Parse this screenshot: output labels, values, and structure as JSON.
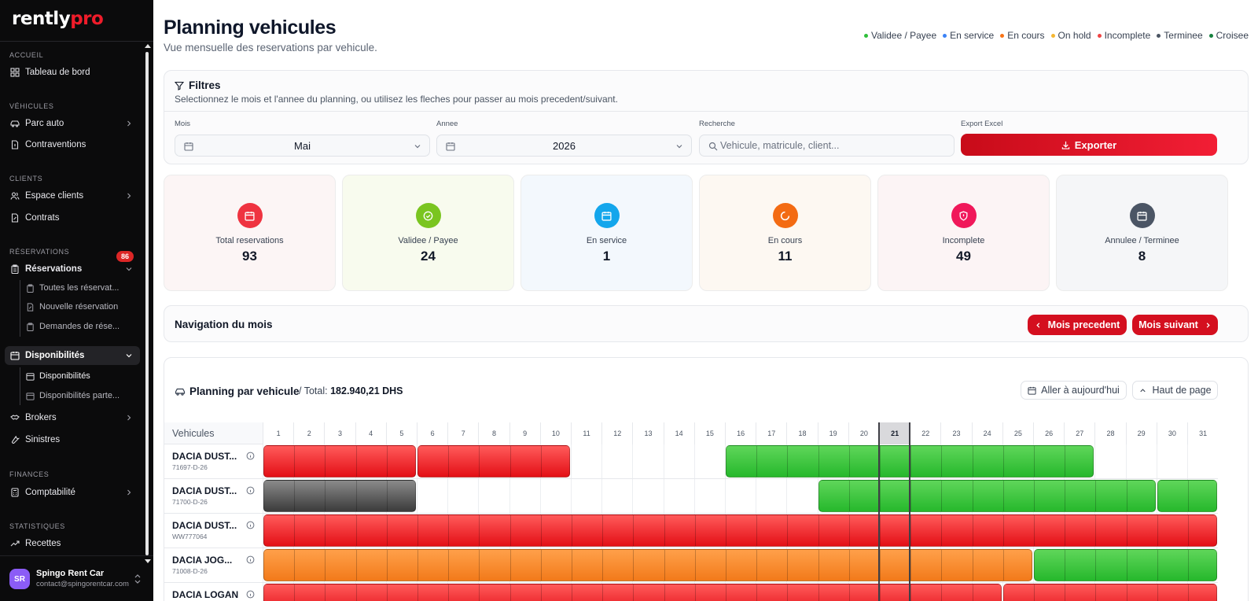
{
  "sidebar": {
    "logo_prefix": "rently",
    "logo_suffix": "pro",
    "sections": {
      "accueil": "ACCUEIL",
      "vehicules": "VÉHICULES",
      "clients": "CLIENTS",
      "reservations": "RÉSERVATIONS",
      "finances": "FINANCES",
      "statistiques": "STATISTIQUES"
    },
    "items": {
      "tableau": "Tableau de bord",
      "parc": "Parc auto",
      "contraventions": "Contraventions",
      "espace": "Espace clients",
      "contrats": "Contrats",
      "reservations": "Réservations",
      "toutes": "Toutes les réservat...",
      "nouvelle": "Nouvelle réservation",
      "demandes": "Demandes de rése...",
      "disponibilites": "Disponibilités",
      "dispo_sub": "Disponibilités",
      "dispo_part": "Disponibilités parte...",
      "brokers": "Brokers",
      "sinistres": "Sinistres",
      "comptabilite": "Comptabilité",
      "recettes": "Recettes"
    },
    "reservations_badge": "86",
    "user": {
      "initials": "SR",
      "name": "Spingo Rent Car",
      "email": "contact@spingorentcar.com"
    }
  },
  "header": {
    "title": "Planning vehicules",
    "subtitle": "Vue mensuelle des reservations par vehicule."
  },
  "legend": [
    {
      "label": "Validee / Payee",
      "color": "#2fbf3a"
    },
    {
      "label": "En service",
      "color": "#3b82f6"
    },
    {
      "label": "En cours",
      "color": "#f97316"
    },
    {
      "label": "On hold",
      "color": "#f5b731"
    },
    {
      "label": "Incomplete",
      "color": "#ef4444"
    },
    {
      "label": "Terminee",
      "color": "#4b5563"
    },
    {
      "label": "Croisee",
      "color": "#15803d"
    }
  ],
  "filters": {
    "title": "Filtres",
    "description": "Selectionnez le mois et l'annee du planning, ou utilisez les fleches pour passer au mois precedent/suivant.",
    "month_label": "Mois",
    "month_value": "Mai",
    "year_label": "Annee",
    "year_value": "2026",
    "search_label": "Recherche",
    "search_placeholder": "Vehicule, matricule, client...",
    "export_label": "Export Excel",
    "export_button": "Exporter"
  },
  "stats": [
    {
      "label": "Total reservations",
      "value": "93",
      "icon": "calendar-icon",
      "color": "#ef3340",
      "bg": "#fcf5f5"
    },
    {
      "label": "Validee / Payee",
      "value": "24",
      "icon": "check-circle-icon",
      "color": "#7ac520",
      "bg": "#f8fbee"
    },
    {
      "label": "En service",
      "value": "1",
      "icon": "calendar-icon",
      "color": "#13a6ec",
      "bg": "#f3f8fd"
    },
    {
      "label": "En cours",
      "value": "11",
      "icon": "loader-icon",
      "color": "#f36b13",
      "bg": "#fdf8f2"
    },
    {
      "label": "Incomplete",
      "value": "49",
      "icon": "shield-alert-icon",
      "color": "#f0185a",
      "bg": "#fcf4f5"
    },
    {
      "label": "Annulee / Terminee",
      "value": "8",
      "icon": "calendar-icon",
      "color": "#4b5565",
      "bg": "#f5f6f8"
    }
  ],
  "navigation": {
    "title": "Navigation du mois",
    "prev": "Mois precedent",
    "next": "Mois suivant"
  },
  "planning": {
    "title": "Planning par vehicule",
    "total_prefix": "/ Total:",
    "total_value": "182.940,21 DHS",
    "today_button": "Aller à aujourd'hui",
    "top_button": "Haut de page",
    "vehicles_header": "Vehicules",
    "days": [
      "1",
      "2",
      "3",
      "4",
      "5",
      "6",
      "7",
      "8",
      "9",
      "10",
      "11",
      "12",
      "13",
      "14",
      "15",
      "16",
      "17",
      "18",
      "19",
      "20",
      "21",
      "22",
      "23",
      "24",
      "25",
      "26",
      "27",
      "28",
      "29",
      "30",
      "31"
    ],
    "today": 21,
    "status_colors": {
      "incomplete": [
        "#ff5a5a",
        "#e30f16"
      ],
      "validee": [
        "#5fd65a",
        "#26b82c"
      ],
      "terminee": [
        "#8a8a8a",
        "#3b3b3b"
      ],
      "encours": [
        "#ffa04a",
        "#f27a1a"
      ]
    },
    "vehicles": [
      {
        "name": "DACIA DUST...",
        "plate": "71697-D-26",
        "bookings": [
          {
            "start": 1,
            "end": 5,
            "status": "incomplete"
          },
          {
            "start": 6,
            "end": 10,
            "status": "incomplete"
          },
          {
            "start": 16,
            "end": 27,
            "status": "validee"
          }
        ]
      },
      {
        "name": "DACIA DUST...",
        "plate": "71700-D-26",
        "bookings": [
          {
            "start": 1,
            "end": 5,
            "status": "terminee"
          },
          {
            "start": 19,
            "end": 29,
            "status": "validee"
          },
          {
            "start": 30,
            "end": 31,
            "status": "validee"
          }
        ]
      },
      {
        "name": "DACIA DUST...",
        "plate": "WW777064",
        "bookings": [
          {
            "start": 1,
            "end": 31,
            "status": "incomplete"
          }
        ]
      },
      {
        "name": "DACIA JOG...",
        "plate": "71008-D-26",
        "bookings": [
          {
            "start": 1,
            "end": 25,
            "status": "encours"
          },
          {
            "start": 26,
            "end": 31,
            "status": "validee"
          }
        ]
      },
      {
        "name": "DACIA LOGAN",
        "plate": "",
        "bookings": [
          {
            "start": 1,
            "end": 24,
            "status": "incomplete"
          },
          {
            "start": 25,
            "end": 31,
            "status": "incomplete"
          }
        ]
      }
    ]
  }
}
